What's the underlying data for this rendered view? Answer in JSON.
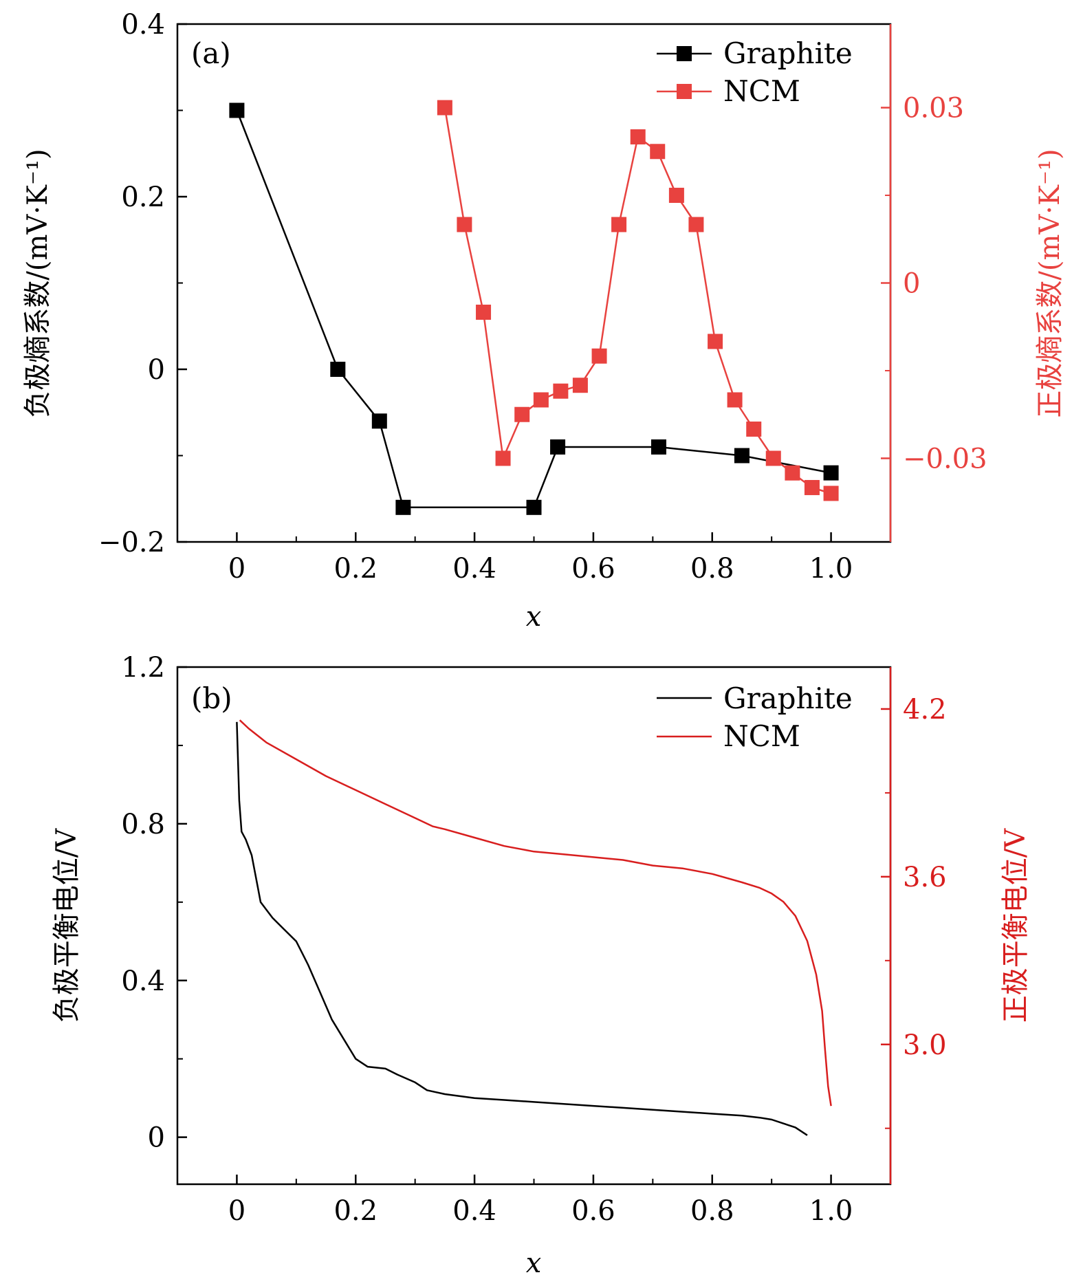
{
  "chart_data": [
    {
      "type": "line",
      "panel_label": "(a)",
      "xlabel": "x",
      "xlim": [
        -0.1,
        1.1
      ],
      "x_ticks": [
        0,
        0.2,
        0.4,
        0.6,
        0.8,
        1.0
      ],
      "x_tick_labels": [
        "0",
        "0.2",
        "0.4",
        "0.6",
        "0.8",
        "1.0"
      ],
      "ylabel_left": "负极熵系数/(mV·K⁻¹)",
      "ylim_left": [
        -0.2,
        0.4
      ],
      "y_ticks_left": [
        -0.2,
        0,
        0.2,
        0.4
      ],
      "y_tick_labels_left": [
        "−0.2",
        "0",
        "0.2",
        "0.4"
      ],
      "ylabel_right": "正极熵系数/(mV·K⁻¹)",
      "ylim_right": [
        -0.0443,
        0.0443
      ],
      "y_ticks_right": [
        -0.03,
        0,
        0.03
      ],
      "y_tick_labels_right": [
        "−0.03",
        "0",
        "0.03"
      ],
      "right_axis_color": "#e8423f",
      "legend_position": "top-right",
      "series": [
        {
          "name": "Graphite",
          "axis": "left",
          "color": "#000000",
          "marker": "square",
          "x": [
            0,
            0.17,
            0.24,
            0.28,
            0.5,
            0.54,
            0.71,
            0.85,
            1.0
          ],
          "y": [
            0.3,
            0,
            -0.06,
            -0.16,
            -0.16,
            -0.09,
            -0.09,
            -0.1,
            -0.12
          ]
        },
        {
          "name": "NCM",
          "axis": "right",
          "color": "#e8423f",
          "marker": "square",
          "x": [
            0.35,
            0.383,
            0.415,
            0.448,
            0.48,
            0.512,
            0.545,
            0.578,
            0.61,
            0.643,
            0.675,
            0.708,
            0.74,
            0.773,
            0.805,
            0.838,
            0.87,
            0.903,
            0.935,
            0.968,
            1.0
          ],
          "y": [
            0.03,
            0.01,
            -0.005,
            -0.03,
            -0.0225,
            -0.02,
            -0.0185,
            -0.0175,
            -0.0125,
            0.01,
            0.025,
            0.0225,
            0.015,
            0.01,
            -0.01,
            -0.02,
            -0.025,
            -0.03,
            -0.0325,
            -0.035,
            -0.036
          ]
        }
      ]
    },
    {
      "type": "line",
      "panel_label": "(b)",
      "xlabel": "x",
      "xlim": [
        -0.1,
        1.1
      ],
      "x_ticks": [
        0,
        0.2,
        0.4,
        0.6,
        0.8,
        1.0
      ],
      "x_tick_labels": [
        "0",
        "0.2",
        "0.4",
        "0.6",
        "0.8",
        "1.0"
      ],
      "ylabel_left": "负极平衡电位/V",
      "ylim_left": [
        -0.12,
        1.2
      ],
      "y_ticks_left": [
        0,
        0.4,
        0.8,
        1.2
      ],
      "y_tick_labels_left": [
        "0",
        "0.4",
        "0.8",
        "1.2"
      ],
      "ylabel_right": "正极平衡电位/V",
      "ylim_right": [
        2.5,
        4.35
      ],
      "y_ticks_right": [
        3.0,
        3.6,
        4.2
      ],
      "y_tick_labels_right": [
        "3.0",
        "3.6",
        "4.2"
      ],
      "right_axis_color": "#d81e1e",
      "legend_position": "top-right",
      "series": [
        {
          "name": "Graphite",
          "axis": "left",
          "color": "#000000",
          "marker": "none",
          "x": [
            0.0,
            0.004,
            0.008,
            0.015,
            0.025,
            0.035,
            0.04,
            0.06,
            0.08,
            0.1,
            0.11,
            0.12,
            0.14,
            0.16,
            0.18,
            0.2,
            0.22,
            0.25,
            0.27,
            0.3,
            0.32,
            0.35,
            0.4,
            0.45,
            0.5,
            0.55,
            0.6,
            0.65,
            0.7,
            0.75,
            0.8,
            0.85,
            0.88,
            0.9,
            0.92,
            0.94,
            0.96
          ],
          "y": [
            1.06,
            0.86,
            0.78,
            0.76,
            0.72,
            0.64,
            0.6,
            0.56,
            0.53,
            0.5,
            0.47,
            0.44,
            0.37,
            0.3,
            0.25,
            0.2,
            0.18,
            0.175,
            0.16,
            0.14,
            0.12,
            0.11,
            0.1,
            0.095,
            0.09,
            0.085,
            0.08,
            0.075,
            0.07,
            0.065,
            0.06,
            0.055,
            0.05,
            0.045,
            0.035,
            0.025,
            0.005
          ]
        },
        {
          "name": "NCM",
          "axis": "right",
          "color": "#d81e1e",
          "marker": "none",
          "x": [
            0.005,
            0.02,
            0.05,
            0.1,
            0.15,
            0.2,
            0.25,
            0.3,
            0.33,
            0.35,
            0.4,
            0.45,
            0.5,
            0.55,
            0.6,
            0.65,
            0.7,
            0.75,
            0.8,
            0.85,
            0.88,
            0.9,
            0.92,
            0.94,
            0.96,
            0.975,
            0.985,
            0.99,
            0.995,
            1.0
          ],
          "y": [
            4.16,
            4.13,
            4.08,
            4.02,
            3.96,
            3.91,
            3.86,
            3.81,
            3.78,
            3.77,
            3.74,
            3.71,
            3.69,
            3.68,
            3.67,
            3.66,
            3.64,
            3.63,
            3.61,
            3.58,
            3.56,
            3.54,
            3.51,
            3.46,
            3.37,
            3.25,
            3.12,
            2.98,
            2.85,
            2.78
          ]
        }
      ]
    }
  ]
}
